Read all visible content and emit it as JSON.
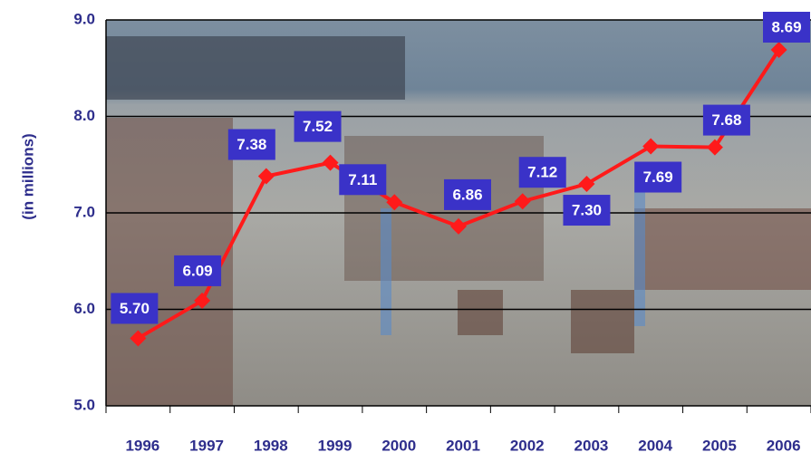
{
  "chart_data": {
    "type": "line",
    "y_label": "(in millions)",
    "categories": [
      "1996",
      "1997",
      "1998",
      "1999",
      "2000",
      "2001",
      "2002",
      "2003",
      "2004",
      "2005",
      "2006"
    ],
    "values": [
      5.7,
      6.09,
      7.38,
      7.52,
      7.11,
      6.86,
      7.12,
      7.3,
      7.69,
      7.68,
      8.69
    ],
    "value_labels": [
      "5.70",
      "6.09",
      "7.38",
      "7.52",
      "7.11",
      "6.86",
      "7.12",
      "7.30",
      "7.69",
      "7.68",
      "8.69"
    ],
    "color": "#ff1a1a",
    "ylim": [
      5,
      9
    ],
    "yticks": [
      {
        "value": 5,
        "label": "5.0"
      },
      {
        "value": 6,
        "label": "6.0"
      },
      {
        "value": 7,
        "label": "7.0"
      },
      {
        "value": 8,
        "label": "8.0"
      },
      {
        "value": 9,
        "label": "9.0"
      }
    ],
    "grid": true
  }
}
